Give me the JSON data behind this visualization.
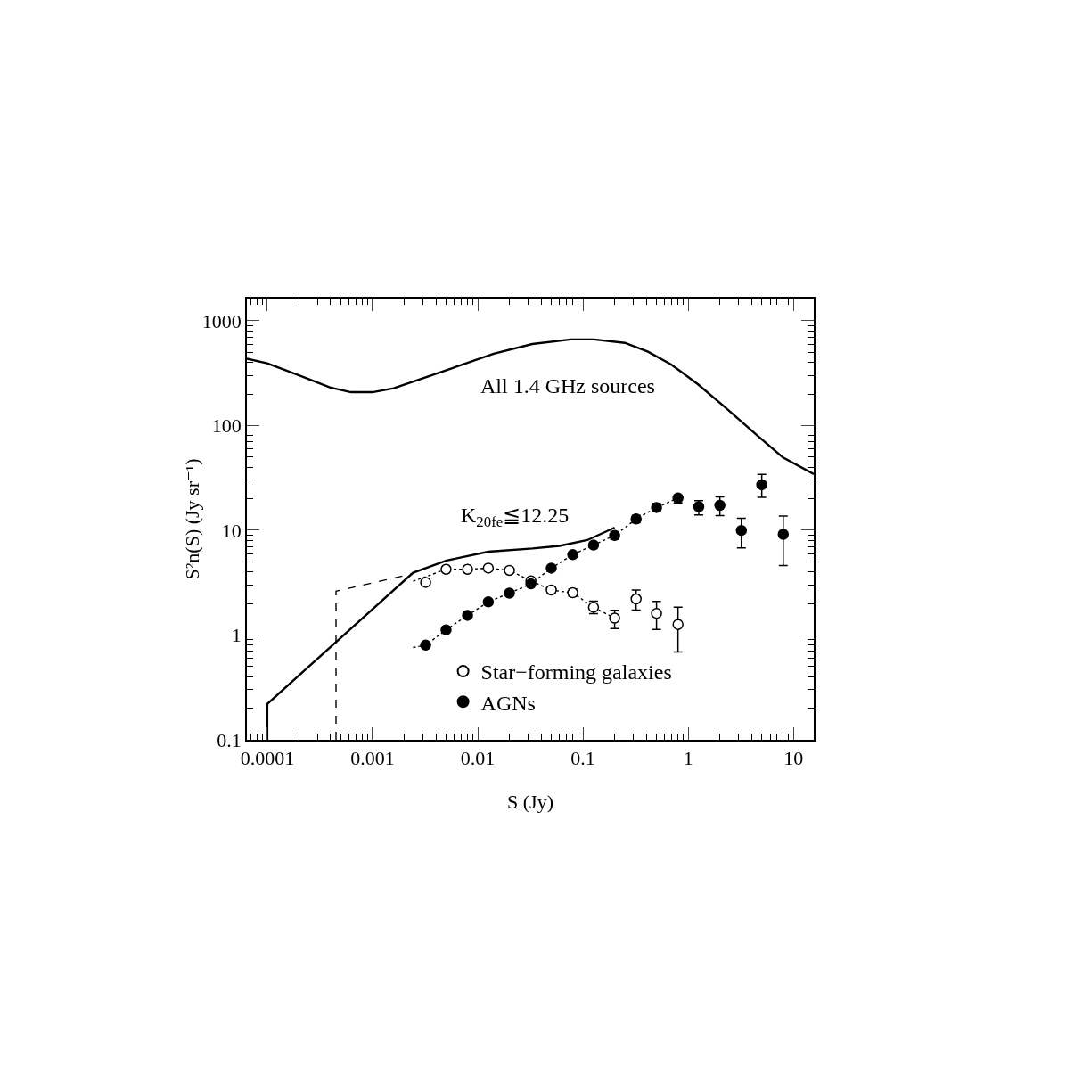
{
  "chart_data": {
    "type": "scatter",
    "xlabel": "S (Jy)",
    "ylabel": "S²n(S) (Jy sr⁻¹)",
    "log": "xy",
    "grid": false,
    "legend": "bottom",
    "xlim": [
      6.4e-05,
      15.6
    ],
    "xticks": [
      0.0001,
      0.001,
      0.01,
      0.1,
      1,
      10
    ],
    "ylim": [
      0.1,
      1630
    ],
    "yticks": [
      0.1,
      1,
      10,
      100,
      1000
    ],
    "annotations": [
      "All 1.4 GHz sources",
      "K$_{20fe}$≦12.25"
    ],
    "series": [
      {
        "type": "line",
        "line_style": "solid",
        "marker": "none",
        "color": "#000000",
        "x": [
          6.4e-05,
          0.0001,
          0.000208,
          0.000393,
          0.000624,
          0.001,
          0.00159,
          0.00262,
          0.0061,
          0.0142,
          0.033,
          0.0767,
          0.127,
          0.25,
          0.415,
          0.689,
          1.24,
          2.25,
          4.41,
          7.96,
          15.6
        ],
        "values": [
          435,
          393,
          297,
          231,
          208,
          208,
          227,
          269,
          361,
          485,
          600,
          664,
          664,
          615,
          506,
          383,
          247,
          149,
          82.4,
          49.5,
          34.4
        ]
      },
      {
        "type": "line",
        "line_style": "solid",
        "marker": "none",
        "color": "#000000",
        "x": [
          0.0001,
          0.0001,
          0.00243,
          0.00506,
          0.0126,
          0.0332,
          0.0598,
          0.11,
          0.2
        ],
        "values": [
          0.1,
          0.22,
          3.93,
          5.15,
          6.25,
          6.7,
          7.1,
          8.06,
          10.6
        ]
      },
      {
        "type": "line",
        "line_style": "dashed",
        "marker": "none",
        "color": "#000000",
        "x": [
          0.00045,
          0.00045,
          0.00243
        ],
        "values": [
          0.1,
          2.62,
          3.86
        ]
      },
      {
        "type": "line",
        "line_style": "dotted",
        "marker": "none",
        "color": "#000000",
        "x": [
          0.00243,
          0.005,
          0.008,
          0.0126,
          0.02,
          0.032,
          0.05,
          0.08,
          0.126,
          0.2
        ],
        "values": [
          3.26,
          4.24,
          4.24,
          4.35,
          4.14,
          3.29,
          2.69,
          2.53,
          1.84,
          1.45
        ]
      },
      {
        "type": "line",
        "line_style": "dotted",
        "marker": "none",
        "color": "#000000",
        "x": [
          0.00243,
          0.0032,
          0.005,
          0.008,
          0.0126,
          0.02,
          0.032,
          0.05,
          0.08,
          0.126,
          0.2,
          0.32,
          0.5,
          0.8
        ],
        "values": [
          0.76,
          0.8,
          1.12,
          1.54,
          2.07,
          2.51,
          3.08,
          4.35,
          5.85,
          7.22,
          8.92,
          12.8,
          16.5,
          20.3
        ]
      },
      {
        "name": "Star−forming galaxies",
        "marker": "circle",
        "color": "#ffffff",
        "x": [
          0.0032,
          0.005,
          0.008,
          0.0126,
          0.02,
          0.032,
          0.05,
          0.08,
          0.126,
          0.2,
          0.32,
          0.5,
          0.8
        ],
        "values": [
          3.18,
          4.24,
          4.24,
          4.35,
          4.14,
          3.29,
          2.69,
          2.53,
          1.84,
          1.45,
          2.21,
          1.61,
          1.26
        ],
        "errors": [
          null,
          null,
          null,
          null,
          null,
          null,
          [
            2.5,
            2.9
          ],
          [
            2.35,
            2.75
          ],
          [
            1.6,
            2.1
          ],
          [
            1.15,
            1.72
          ],
          [
            1.73,
            2.69
          ],
          [
            1.13,
            2.09
          ],
          [
            0.69,
            1.84
          ]
        ]
      },
      {
        "name": "AGNs",
        "marker": "circle",
        "color": "#000000",
        "x": [
          0.0032,
          0.005,
          0.008,
          0.0126,
          0.02,
          0.032,
          0.05,
          0.08,
          0.126,
          0.2,
          0.32,
          0.5,
          0.8,
          1.26,
          2,
          3.2,
          5,
          8
        ],
        "values": [
          0.8,
          1.12,
          1.54,
          2.07,
          2.51,
          3.08,
          4.35,
          5.85,
          7.22,
          8.92,
          12.8,
          16.5,
          20.3,
          16.8,
          17.3,
          9.96,
          27.2,
          9.15
        ],
        "errors": [
          null,
          null,
          null,
          null,
          null,
          null,
          null,
          null,
          null,
          [
            8.2,
            9.7
          ],
          [
            11.8,
            13.9
          ],
          [
            15.2,
            18
          ],
          [
            18.3,
            21.7
          ],
          [
            14,
            19.2
          ],
          [
            13.8,
            20.8
          ],
          [
            6.8,
            13
          ],
          [
            20.6,
            34.2
          ],
          [
            4.6,
            13.7
          ]
        ]
      }
    ]
  }
}
